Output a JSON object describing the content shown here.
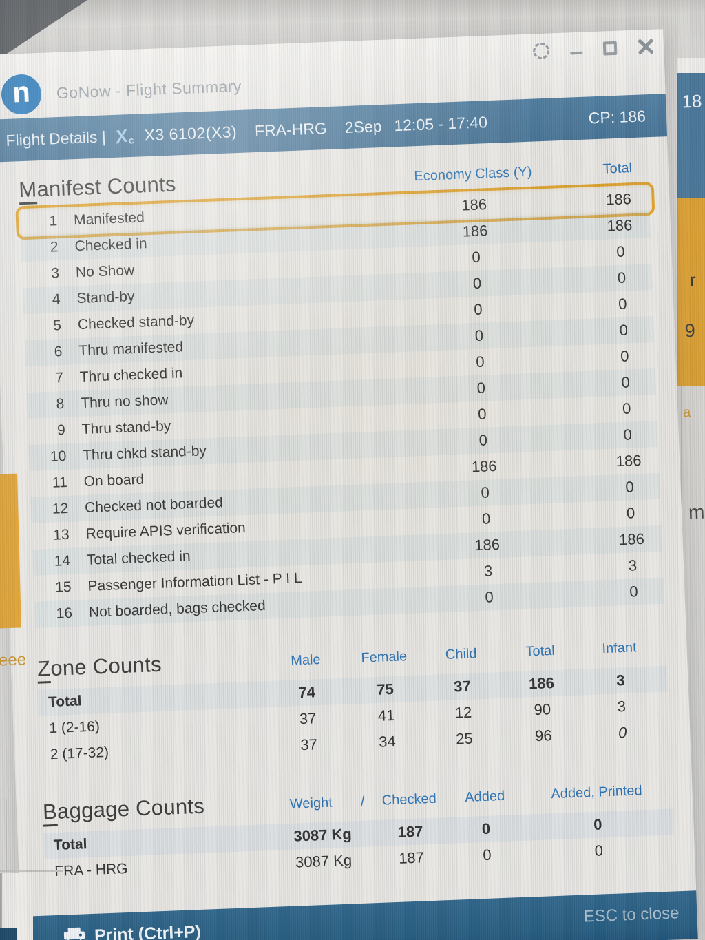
{
  "window": {
    "logo_letter": "n",
    "title": "GoNow - Flight Summary"
  },
  "icons": {
    "settings": "dashed-circle",
    "minimize": "dash",
    "maximize": "square-outline",
    "close": "x-cross",
    "airline_logo_glyph": "X",
    "airline_logo_sub": "c",
    "printer": "printer-glyph"
  },
  "header": {
    "left_label": "Flight Details |",
    "flight_number": "X3 6102(X3)",
    "route": "FRA-HRG",
    "date": "2Sep",
    "time_range": "12:05 - 17:40",
    "cp_badge": "CP: 186"
  },
  "manifest": {
    "title": "Manifest Counts",
    "col_economy": "Economy Class (Y)",
    "col_total": "Total",
    "rows": [
      {
        "num": "1",
        "label": "Manifested",
        "economy": "186",
        "total": "186",
        "highlighted": true
      },
      {
        "num": "2",
        "label": "Checked in",
        "economy": "186",
        "total": "186"
      },
      {
        "num": "3",
        "label": "No Show",
        "economy": "0",
        "total": "0"
      },
      {
        "num": "4",
        "label": "Stand-by",
        "economy": "0",
        "total": "0"
      },
      {
        "num": "5",
        "label": "Checked stand-by",
        "economy": "0",
        "total": "0"
      },
      {
        "num": "6",
        "label": "Thru manifested",
        "economy": "0",
        "total": "0"
      },
      {
        "num": "7",
        "label": "Thru checked in",
        "economy": "0",
        "total": "0"
      },
      {
        "num": "8",
        "label": "Thru no show",
        "economy": "0",
        "total": "0"
      },
      {
        "num": "9",
        "label": "Thru stand-by",
        "economy": "0",
        "total": "0"
      },
      {
        "num": "10",
        "label": "Thru chkd stand-by",
        "economy": "0",
        "total": "0"
      },
      {
        "num": "11",
        "label": "On board",
        "economy": "186",
        "total": "186"
      },
      {
        "num": "12",
        "label": "Checked not boarded",
        "economy": "0",
        "total": "0"
      },
      {
        "num": "13",
        "label": "Require APIS verification",
        "economy": "0",
        "total": "0"
      },
      {
        "num": "14",
        "label": "Total checked in",
        "economy": "186",
        "total": "186"
      },
      {
        "num": "15",
        "label": "Passenger Information List - P I L",
        "economy": "3",
        "total": "3"
      },
      {
        "num": "16",
        "label": "Not boarded, bags checked",
        "economy": "0",
        "total": "0"
      }
    ]
  },
  "zones": {
    "title": "Zone Counts",
    "columns": [
      "Male",
      "Female",
      "Child",
      "Total",
      "Infant"
    ],
    "rows": [
      {
        "label": "Total",
        "bold": true,
        "values": [
          "74",
          "75",
          "37",
          "186",
          "3"
        ]
      },
      {
        "label": "1 (2-16)",
        "values": [
          "37",
          "41",
          "12",
          "90",
          "3"
        ]
      },
      {
        "label": "2 (17-32)",
        "italic_last": true,
        "values": [
          "37",
          "34",
          "25",
          "96",
          "0"
        ]
      }
    ]
  },
  "baggage": {
    "title": "Baggage Counts",
    "col_weight": "Weight",
    "col_slash": "/",
    "col_checked": "Checked",
    "col_added": "Added",
    "col_added_printed": "Added, Printed",
    "rows": [
      {
        "label": "Total",
        "bold": true,
        "weight": "3087 Kg",
        "checked": "187",
        "added": "0",
        "added_printed": "0"
      },
      {
        "label": "FRA - HRG",
        "weight": "3087 Kg",
        "checked": "187",
        "added": "0",
        "added_printed": "0"
      }
    ]
  },
  "footer": {
    "print_label": "Print (Ctrl+P)",
    "esc_label": "ESC to close"
  },
  "background_fragments": {
    "right_bar_text": "18",
    "right_letter_r": "r",
    "right_digit_9": "9",
    "right_letter_a": "a",
    "right_letter_m": "m",
    "left_text": "eee"
  }
}
